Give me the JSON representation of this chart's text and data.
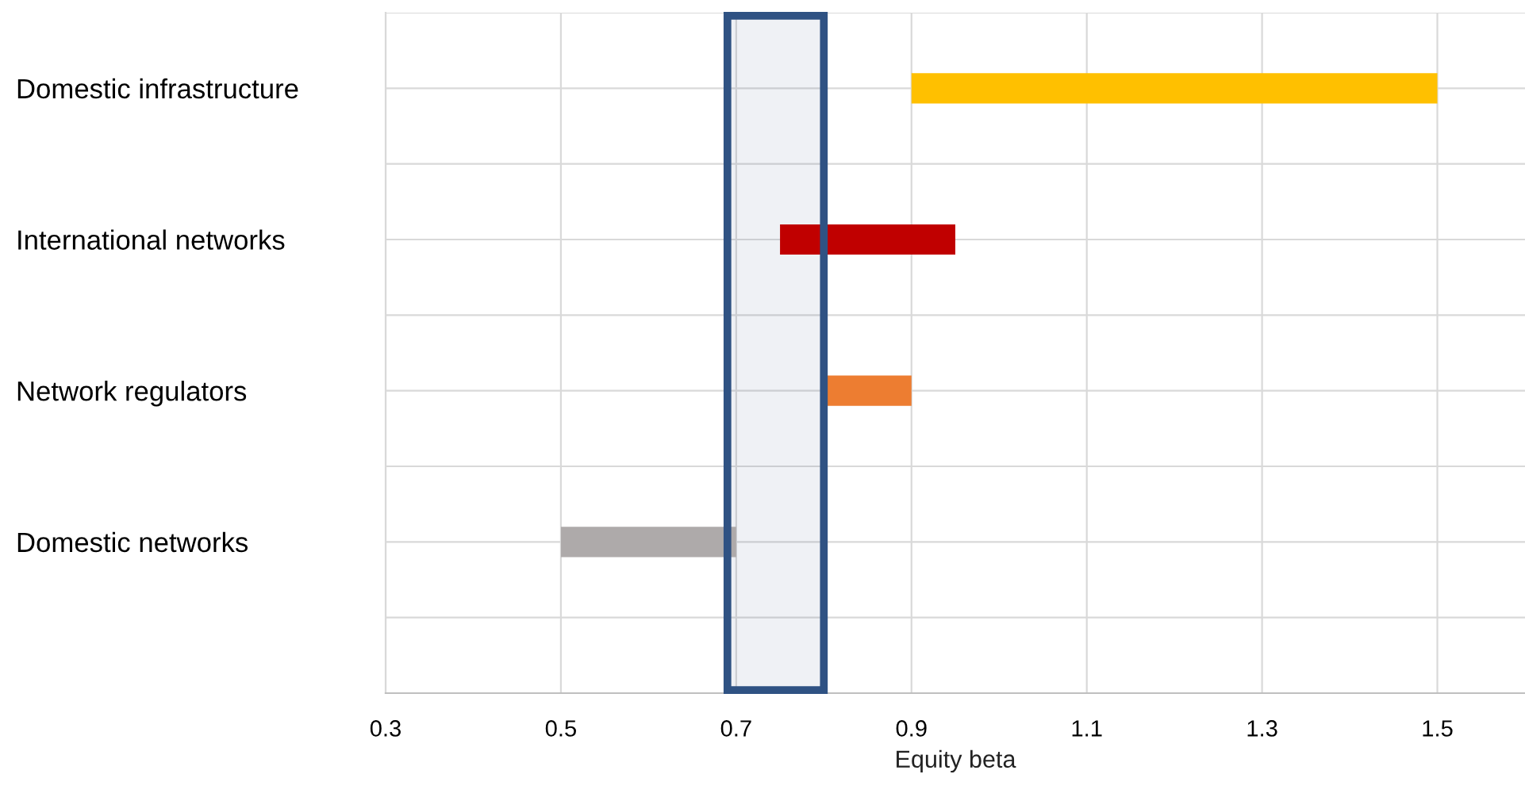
{
  "chart_data": {
    "type": "bar",
    "orientation": "horizontal",
    "xlabel": "Equity beta",
    "categories": [
      "Domestic infrastructure",
      "International networks",
      "Network regulators",
      "Domestic networks"
    ],
    "base": [
      0.9,
      0.75,
      0.8,
      0.5
    ],
    "values": [
      0.6,
      0.2,
      0.1,
      0.2
    ],
    "colors": [
      "#ffc000",
      "#c00000",
      "#ed7d31",
      "#aeaaaa"
    ],
    "xlim": [
      0.3,
      1.6
    ],
    "xticks": [
      0.3,
      0.5,
      0.7,
      0.9,
      1.1,
      1.3,
      1.5
    ],
    "bands": [
      {
        "axis": "x",
        "from": 0.69,
        "to": 0.8,
        "color": "#2f5283"
      }
    ],
    "grid": true
  }
}
